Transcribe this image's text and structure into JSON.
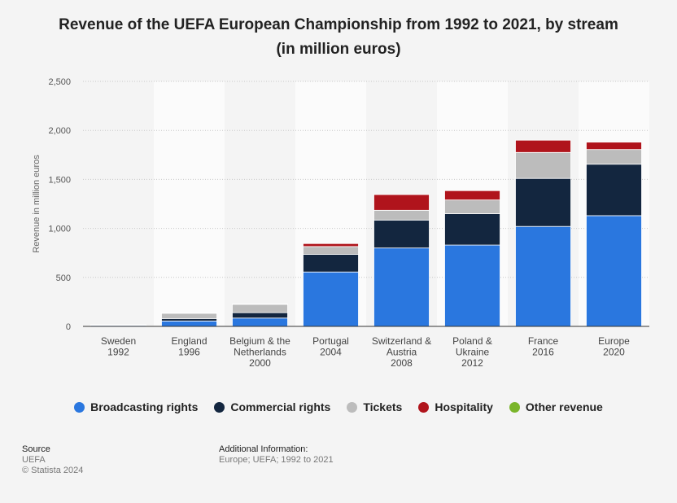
{
  "chart_data": {
    "type": "bar",
    "stacked": true,
    "title": "Revenue of the UEFA European Championship from 1992 to 2021, by stream (in million euros)",
    "ylabel": "Revenue in million euros",
    "ylim": [
      0,
      2500
    ],
    "yticks": [
      0,
      500,
      1000,
      1500,
      2000,
      2500
    ],
    "ytick_labels": [
      "0",
      "500",
      "1,000",
      "1,500",
      "2,000",
      "2,500"
    ],
    "grid": true,
    "legend_position": "bottom",
    "categories": [
      [
        "Sweden",
        "1992"
      ],
      [
        "England",
        "1996"
      ],
      [
        "Belgium & the",
        "Netherlands",
        "2000"
      ],
      [
        "Portugal",
        "2004"
      ],
      [
        "Switzerland &",
        "Austria",
        "2008"
      ],
      [
        "Poland &",
        "Ukraine",
        "2012"
      ],
      [
        "France",
        "2016"
      ],
      [
        "Europe",
        "2020"
      ]
    ],
    "series": [
      {
        "name": "Broadcasting rights",
        "color": "#2a77df",
        "values": [
          10,
          55,
          85,
          555,
          800,
          830,
          1020,
          1130
        ]
      },
      {
        "name": "Commercial rights",
        "color": "#13263f",
        "values": [
          3,
          25,
          55,
          180,
          285,
          320,
          490,
          525
        ]
      },
      {
        "name": "Tickets",
        "color": "#bcbcbc",
        "values": [
          5,
          55,
          85,
          80,
          100,
          140,
          265,
          150
        ]
      },
      {
        "name": "Hospitality",
        "color": "#b0141c",
        "values": [
          0,
          2,
          5,
          30,
          160,
          95,
          125,
          75
        ]
      },
      {
        "name": "Other revenue",
        "color": "#7ab52a",
        "values": [
          0,
          0,
          0,
          0,
          0,
          0,
          0,
          0
        ]
      }
    ]
  },
  "footer": {
    "source_label": "Source",
    "source_value": "UEFA",
    "copyright": "© Statista 2024",
    "additional_label": "Additional Information:",
    "additional_value": "Europe; UEFA; 1992 to 2021"
  }
}
